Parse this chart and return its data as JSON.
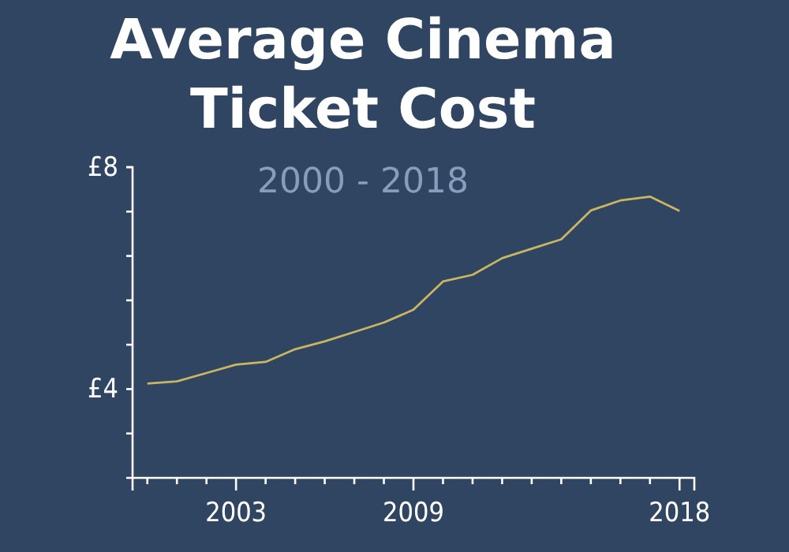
{
  "chart_data": {
    "type": "line",
    "title": "Average Cinema Ticket Cost",
    "subtitle": "2000 - 2018",
    "x": [
      2000,
      2001,
      2002,
      2003,
      2004,
      2005,
      2006,
      2007,
      2008,
      2009,
      2010,
      2011,
      2012,
      2013,
      2014,
      2015,
      2016,
      2017,
      2018
    ],
    "series": [
      {
        "color": "#c9b562",
        "values": [
          4.1,
          4.14,
          4.29,
          4.44,
          4.49,
          4.72,
          4.86,
          5.03,
          5.2,
          5.43,
          5.94,
          6.06,
          6.36,
          6.53,
          6.7,
          7.22,
          7.4,
          7.47,
          7.21
        ]
      }
    ],
    "xlim": [
      1999.5,
      2018.5
    ],
    "xticks": [
      {
        "value": 2000,
        "label": null
      },
      {
        "value": 2001,
        "label": null
      },
      {
        "value": 2002,
        "label": null
      },
      2003,
      {
        "value": 2004,
        "label": null
      },
      {
        "value": 2005,
        "label": null
      },
      {
        "value": 2006,
        "label": null
      },
      {
        "value": 2007,
        "label": null
      },
      {
        "value": 2008,
        "label": null
      },
      2009,
      {
        "value": 2010,
        "label": null
      },
      {
        "value": 2011,
        "label": null
      },
      {
        "value": 2012,
        "label": null
      },
      {
        "value": 2013,
        "label": null
      },
      {
        "value": 2014,
        "label": null
      },
      {
        "value": 2015,
        "label": null
      },
      {
        "value": 2016,
        "label": null
      },
      {
        "value": 2017,
        "label": null
      },
      2018
    ],
    "ylim": [
      2.4,
      8
    ],
    "yticks": [
      {
        "value": 3.2,
        "label": null
      },
      {
        "value": 4,
        "label": "£4"
      },
      {
        "value": 4.8,
        "label": null
      },
      {
        "value": 5.6,
        "label": null
      },
      {
        "value": 6.4,
        "label": null
      },
      {
        "value": 7.2,
        "label": null
      },
      {
        "value": 8,
        "label": "£8"
      }
    ],
    "marker": "none",
    "line_style": "solid"
  }
}
